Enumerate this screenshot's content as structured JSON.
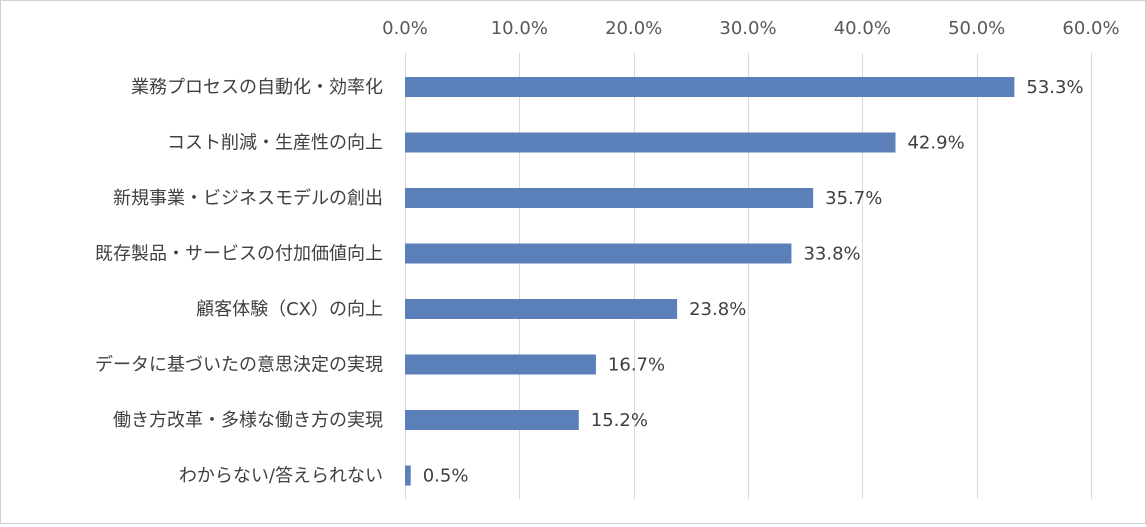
{
  "chart_data": {
    "type": "bar",
    "orientation": "horizontal",
    "categories": [
      "業務プロセスの自動化・効率化",
      "コスト削減・生産性の向上",
      "新規事業・ビジネスモデルの創出",
      "既存製品・サービスの付加価値向上",
      "顧客体験（CX）の向上",
      "データに基づいたの意思決定の実現",
      "働き方改革・多様な働き方の実現",
      "わからない/答えられない"
    ],
    "values": [
      53.3,
      42.9,
      35.7,
      33.8,
      23.8,
      16.7,
      15.2,
      0.5
    ],
    "value_labels": [
      "53.3%",
      "42.9%",
      "35.7%",
      "33.8%",
      "23.8%",
      "16.7%",
      "15.2%",
      "0.5%"
    ],
    "xlim": [
      0,
      60
    ],
    "x_ticks": [
      0,
      10,
      20,
      30,
      40,
      50,
      60
    ],
    "x_tick_labels": [
      "0.0%",
      "10.0%",
      "20.0%",
      "30.0%",
      "40.0%",
      "50.0%",
      "60.0%"
    ],
    "axis_position": "top",
    "grid": true,
    "bar_color": "#5b7fb8",
    "title": "",
    "xlabel": "",
    "ylabel": ""
  }
}
